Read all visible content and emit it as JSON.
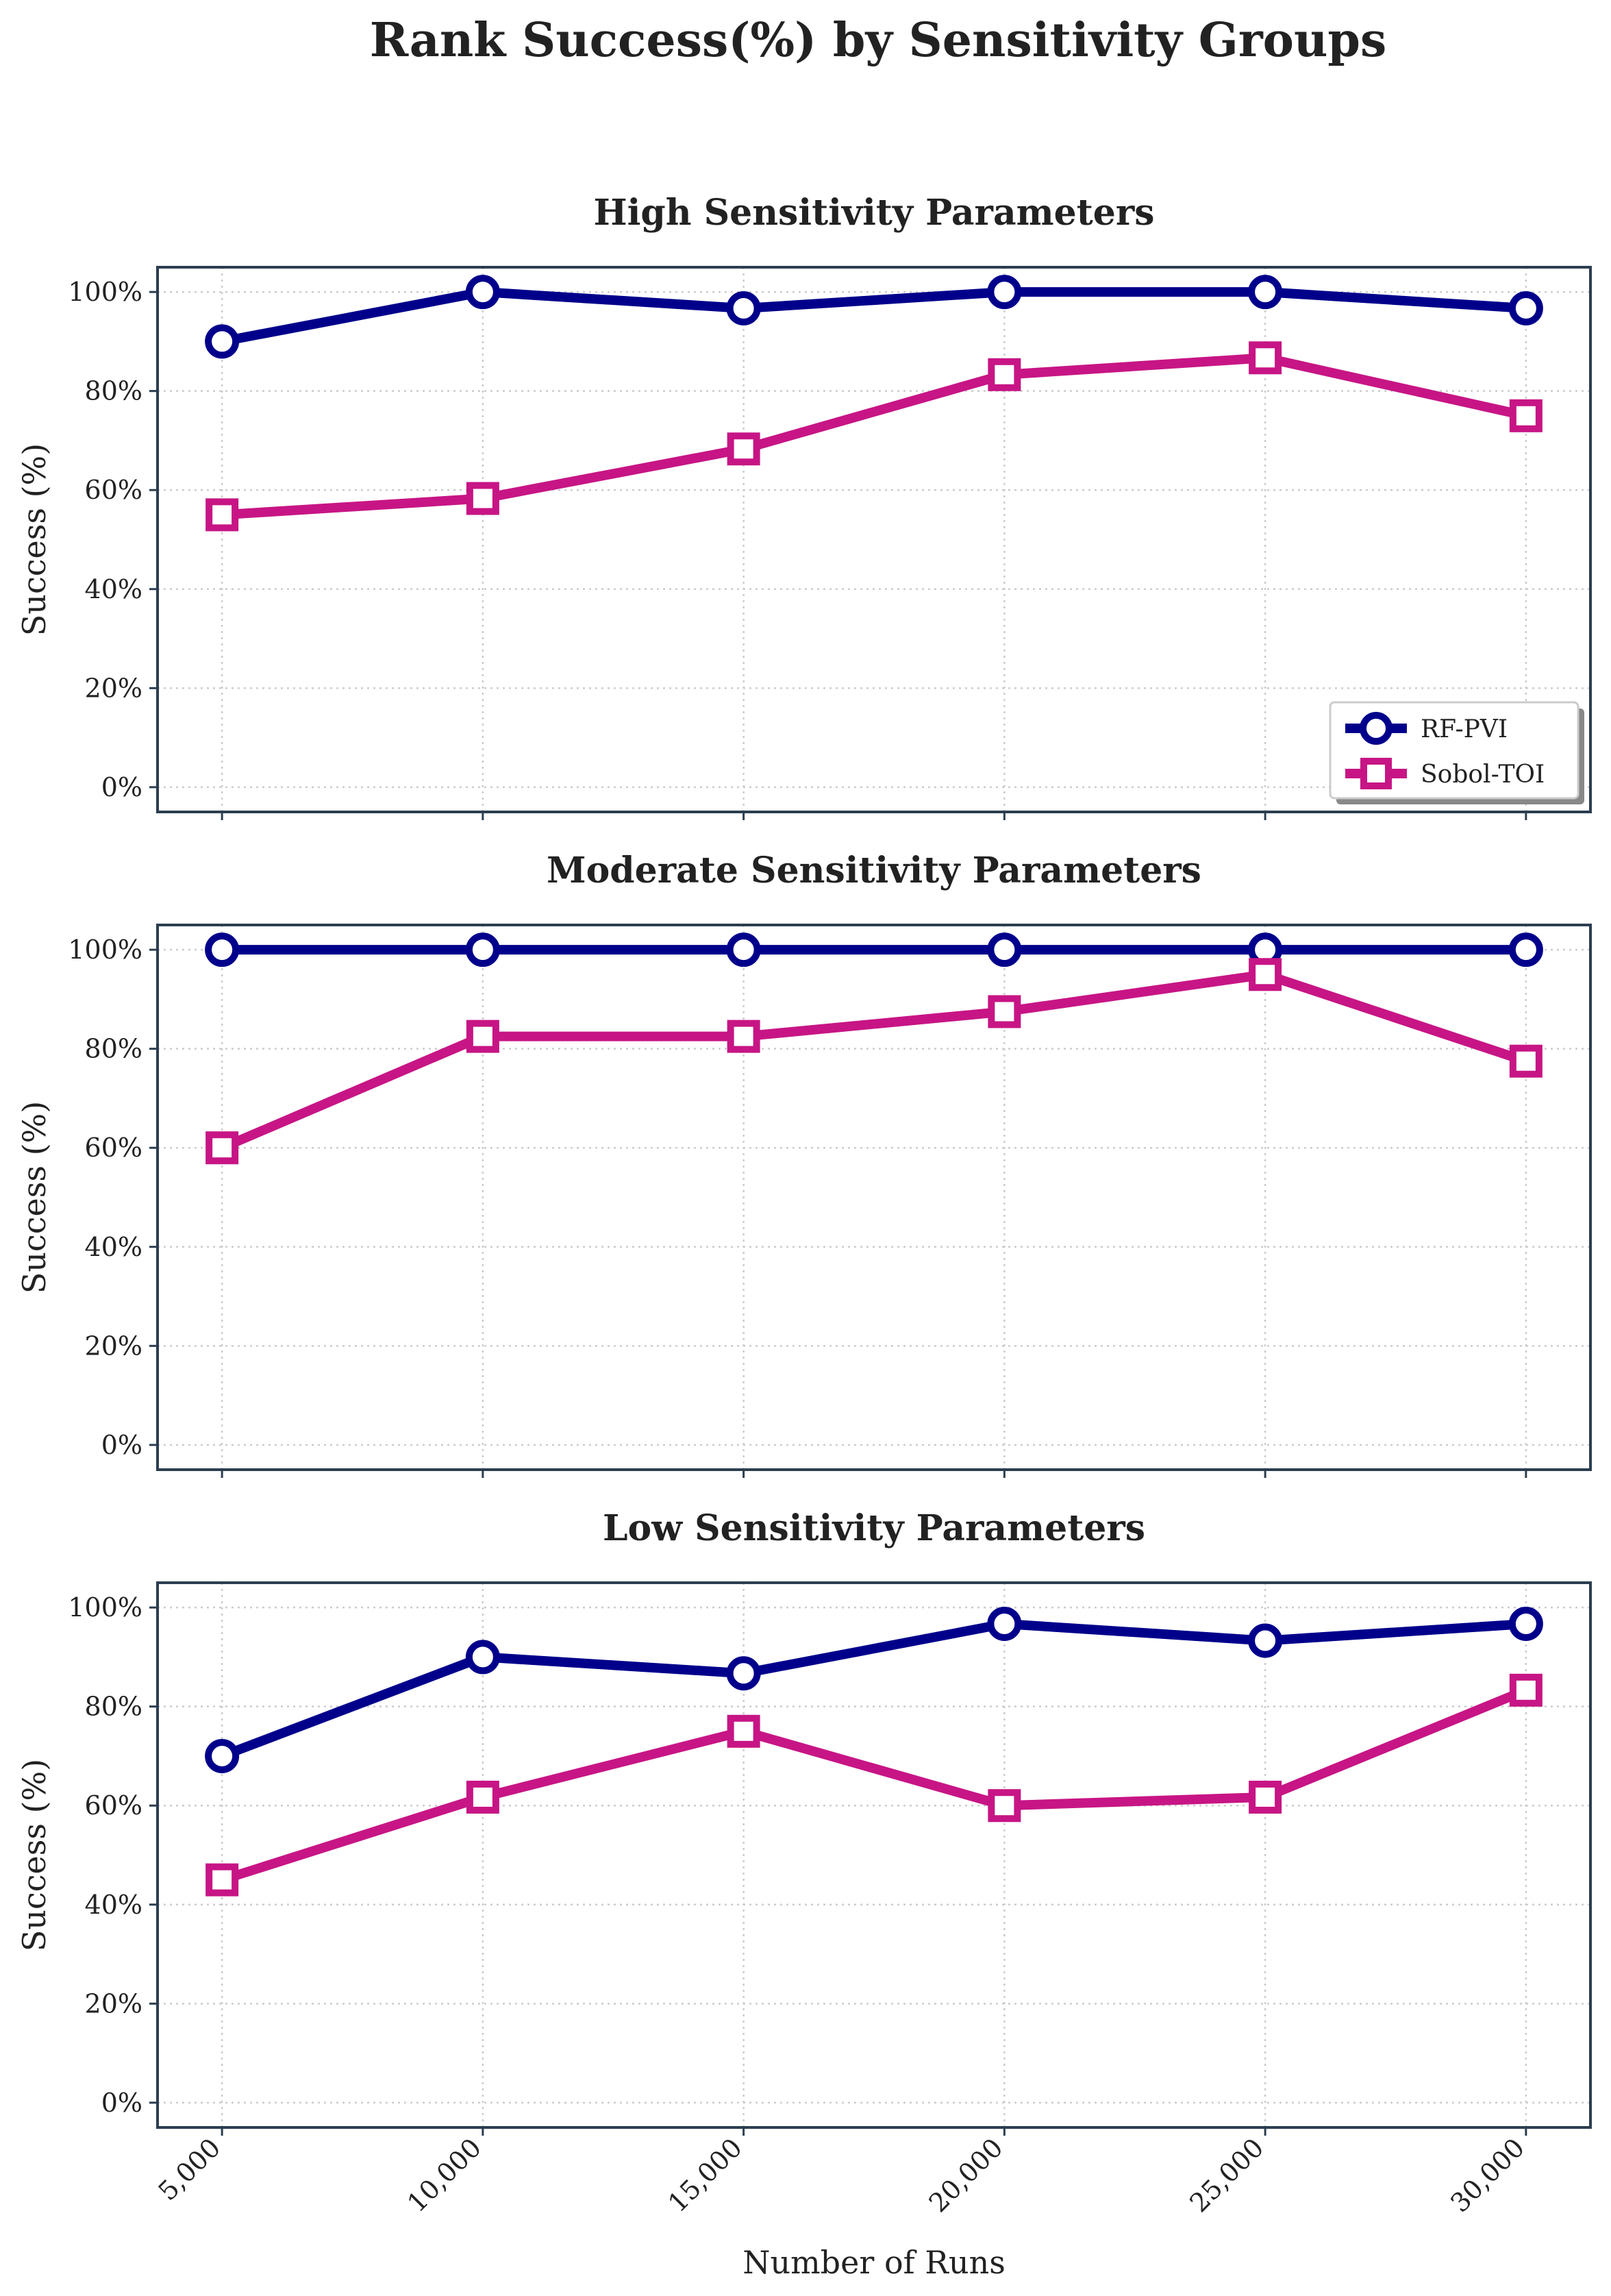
{
  "suptitle": "Rank Success(%) by Sensitivity Groups",
  "colors": {
    "rf": "#00008b",
    "sobol": "#c71585",
    "frame": "#2c3e50",
    "grid": "#cccccc"
  },
  "chart_data": [
    {
      "type": "line",
      "title": "High Sensitivity Parameters",
      "xlabel": "",
      "ylabel": "Success (%)",
      "x": [
        5000,
        10000,
        15000,
        20000,
        25000,
        30000
      ],
      "x_tick_labels": [
        "5,000",
        "10,000",
        "15,000",
        "20,000",
        "25,000",
        "30,000"
      ],
      "ylim": [
        -5,
        105
      ],
      "y_ticks": [
        0,
        20,
        40,
        60,
        80,
        100
      ],
      "y_tick_labels": [
        "0%",
        "20%",
        "40%",
        "60%",
        "80%",
        "100%"
      ],
      "grid": true,
      "legend": "bottom-right",
      "series": [
        {
          "name": "RF-PVI",
          "marker": "circle",
          "values": [
            90,
            100,
            96.7,
            100,
            100,
            96.7
          ]
        },
        {
          "name": "Sobol-TOI",
          "marker": "square",
          "values": [
            55,
            58.3,
            68.3,
            83.3,
            86.7,
            75
          ]
        }
      ]
    },
    {
      "type": "line",
      "title": "Moderate Sensitivity Parameters",
      "xlabel": "",
      "ylabel": "Success (%)",
      "x": [
        5000,
        10000,
        15000,
        20000,
        25000,
        30000
      ],
      "x_tick_labels": [
        "5,000",
        "10,000",
        "15,000",
        "20,000",
        "25,000",
        "30,000"
      ],
      "ylim": [
        -5,
        105
      ],
      "y_ticks": [
        0,
        20,
        40,
        60,
        80,
        100
      ],
      "y_tick_labels": [
        "0%",
        "20%",
        "40%",
        "60%",
        "80%",
        "100%"
      ],
      "grid": true,
      "series": [
        {
          "name": "RF-PVI",
          "marker": "circle",
          "values": [
            100,
            100,
            100,
            100,
            100,
            100
          ]
        },
        {
          "name": "Sobol-TOI",
          "marker": "square",
          "values": [
            60,
            82.5,
            82.5,
            87.5,
            95,
            77.5
          ]
        }
      ]
    },
    {
      "type": "line",
      "title": "Low Sensitivity Parameters",
      "xlabel": "Number of Runs",
      "ylabel": "Success (%)",
      "x": [
        5000,
        10000,
        15000,
        20000,
        25000,
        30000
      ],
      "x_tick_labels": [
        "5,000",
        "10,000",
        "15,000",
        "20,000",
        "25,000",
        "30,000"
      ],
      "ylim": [
        -5,
        105
      ],
      "y_ticks": [
        0,
        20,
        40,
        60,
        80,
        100
      ],
      "y_tick_labels": [
        "0%",
        "20%",
        "40%",
        "60%",
        "80%",
        "100%"
      ],
      "grid": true,
      "series": [
        {
          "name": "RF-PVI",
          "marker": "circle",
          "values": [
            70,
            90,
            86.7,
            96.7,
            93.3,
            96.7
          ]
        },
        {
          "name": "Sobol-TOI",
          "marker": "square",
          "values": [
            45,
            61.7,
            75,
            60,
            61.7,
            83.3
          ]
        }
      ]
    }
  ]
}
